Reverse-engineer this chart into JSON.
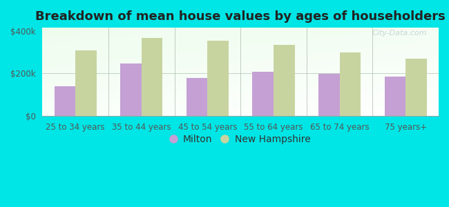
{
  "title": "Breakdown of mean house values by ages of householders",
  "categories": [
    "25 to 34 years",
    "35 to 44 years",
    "45 to 54 years",
    "55 to 64 years",
    "65 to 74 years",
    "75 years+"
  ],
  "milton_values": [
    140000,
    245000,
    178000,
    207000,
    197000,
    185000
  ],
  "nh_values": [
    308000,
    368000,
    355000,
    333000,
    298000,
    268000
  ],
  "milton_color": "#c4a0d4",
  "nh_color": "#c8d4a0",
  "background_color": "#00e5e5",
  "ylabel_ticks": [
    "$0",
    "$200k",
    "$400k"
  ],
  "ytick_values": [
    0,
    200000,
    400000
  ],
  "ylim": [
    0,
    415000
  ],
  "bar_width": 0.32,
  "legend_labels": [
    "Milton",
    "New Hampshire"
  ],
  "title_fontsize": 13,
  "tick_fontsize": 8.5,
  "legend_fontsize": 10,
  "watermark": "City-Data.com"
}
